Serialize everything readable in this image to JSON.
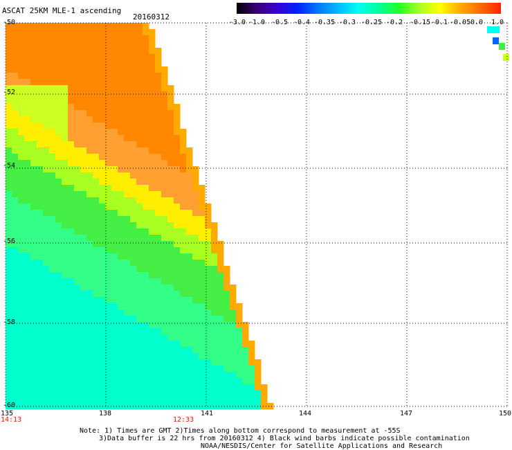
{
  "header": {
    "title": "ASCAT 25KM MLE-1 ascending",
    "date": "20160312"
  },
  "colorbar": {
    "labels": [
      "-3.0",
      "-1.0",
      "-0.5",
      "-0.4",
      "-0.35",
      "-0.3",
      "-0.25",
      "-0.2",
      "-0.15",
      "-0.1",
      "-0.05",
      "0.0",
      "1.0"
    ],
    "colors": [
      "#000000",
      "#3a007a",
      "#3a00d0",
      "#0022ff",
      "#0077ff",
      "#00bbff",
      "#00ffee",
      "#00ff99",
      "#22ff22",
      "#aaff22",
      "#ffff00",
      "#ffaa00",
      "#ff6a00",
      "#ff2200"
    ]
  },
  "map": {
    "lon_ticks": [
      "135",
      "138",
      "141",
      "144",
      "147",
      "150"
    ],
    "lat_ticks": [
      "-50",
      "-52",
      "-54",
      "-56",
      "-58",
      "-60"
    ],
    "times": [
      "14:13",
      "12:33"
    ]
  },
  "notes": {
    "line1": "Note: 1) Times are GMT 2)Times along bottom correspond to measurement at -55S",
    "line2": "3)Data buffer is 22 hrs from 20160312 4) Black wind barbs indicate possible contamination",
    "line3": "NOAA/NESDIS/Center for Satellite Applications and Research"
  }
}
